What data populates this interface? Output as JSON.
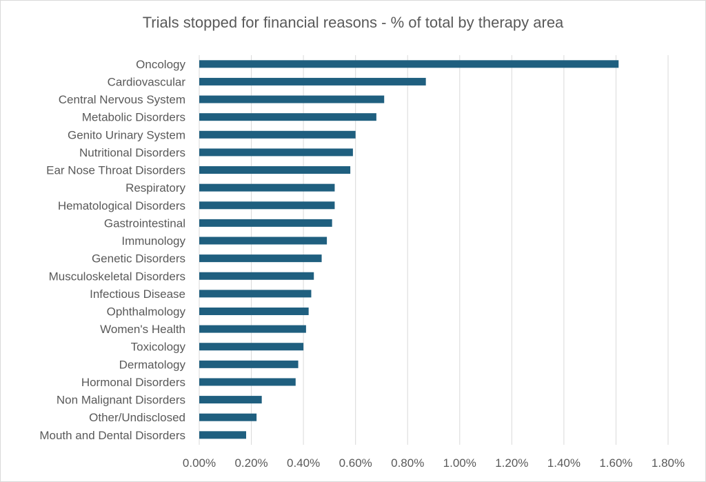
{
  "chart_data": {
    "type": "bar",
    "orientation": "horizontal",
    "title": "Trials stopped for financial reasons - % of total by therapy area",
    "xlabel": "",
    "ylabel": "",
    "xlim": [
      0,
      1.8
    ],
    "x_ticks": [
      "0.00%",
      "0.20%",
      "0.40%",
      "0.60%",
      "0.80%",
      "1.00%",
      "1.20%",
      "1.40%",
      "1.60%",
      "1.80%"
    ],
    "grid": true,
    "bar_color": "#1f5f7f",
    "categories": [
      "Oncology",
      "Cardiovascular",
      "Central Nervous System",
      "Metabolic Disorders",
      "Genito Urinary System",
      "Nutritional Disorders",
      "Ear Nose Throat Disorders",
      "Respiratory",
      "Hematological Disorders",
      "Gastrointestinal",
      "Immunology",
      "Genetic Disorders",
      "Musculoskeletal Disorders",
      "Infectious Disease",
      "Ophthalmology",
      "Women's Health",
      "Toxicology",
      "Dermatology",
      "Hormonal Disorders",
      "Non Malignant Disorders",
      "Other/Undisclosed",
      "Mouth and Dental Disorders"
    ],
    "values": [
      1.61,
      0.87,
      0.71,
      0.68,
      0.6,
      0.59,
      0.58,
      0.52,
      0.52,
      0.51,
      0.49,
      0.47,
      0.44,
      0.43,
      0.42,
      0.41,
      0.4,
      0.38,
      0.37,
      0.24,
      0.22,
      0.18
    ]
  }
}
